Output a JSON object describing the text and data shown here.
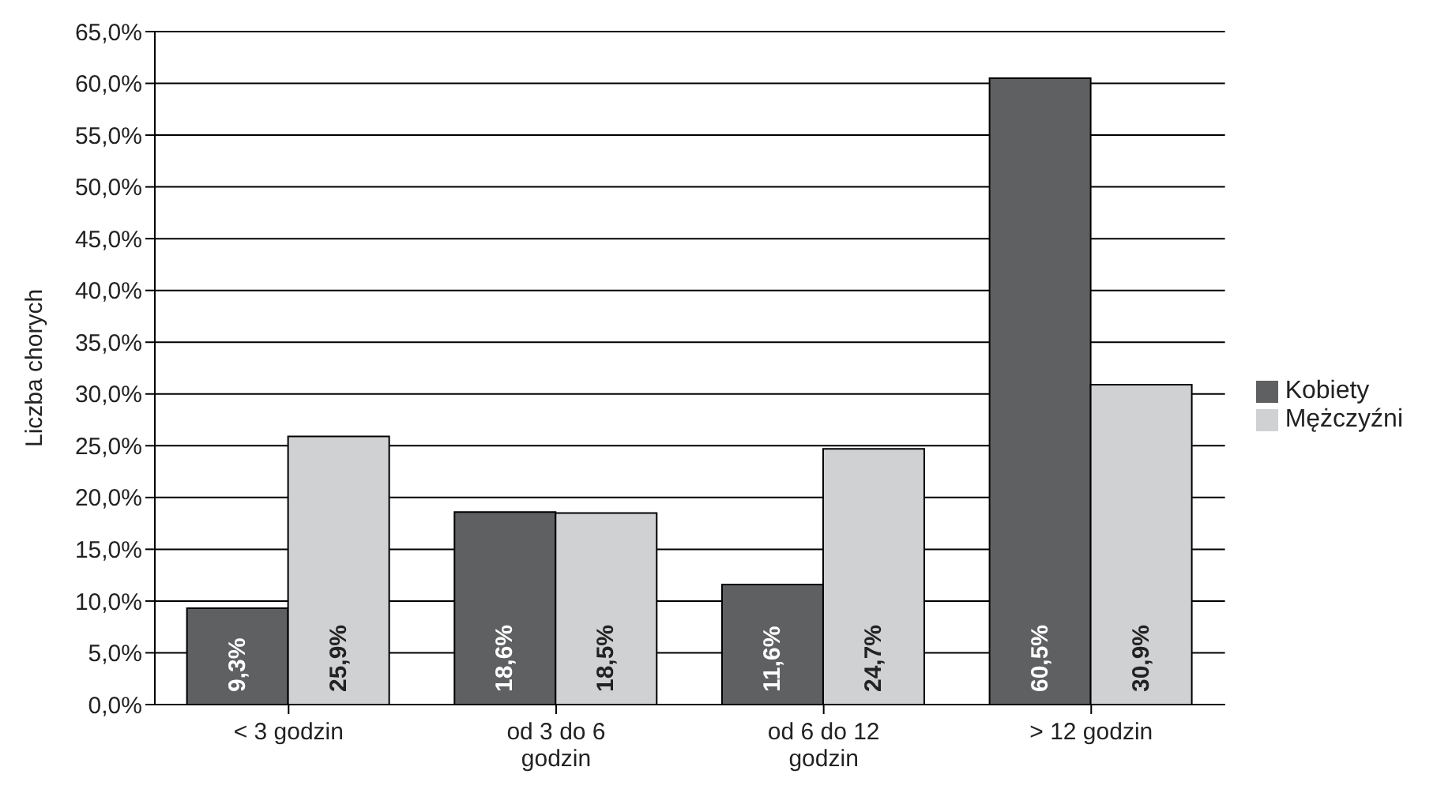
{
  "chart_data": {
    "type": "bar",
    "ylabel": "Liczba chorych",
    "categories": [
      "< 3 godzin",
      "od 3 do 6 godzin",
      "od 6 do 12 godzin",
      "> 12 godzin"
    ],
    "series": [
      {
        "name": "Kobiety",
        "color": "#5f6062",
        "values": [
          9.3,
          18.6,
          11.6,
          60.5
        ],
        "value_labels": [
          "9,3%",
          "18,6%",
          "11,6%",
          "60,5%"
        ]
      },
      {
        "name": "Mężczyźni",
        "color": "#d0d1d3",
        "values": [
          25.9,
          18.5,
          24.7,
          30.9
        ],
        "value_labels": [
          "25,9%",
          "18,5%",
          "24,7%",
          "30,9%"
        ]
      }
    ],
    "ylim": [
      0,
      65
    ],
    "yticks": [
      {
        "value": 0,
        "label": "0,0%"
      },
      {
        "value": 5,
        "label": "5,0%"
      },
      {
        "value": 10,
        "label": "10,0%"
      },
      {
        "value": 15,
        "label": "15,0%"
      },
      {
        "value": 20,
        "label": "20,0%"
      },
      {
        "value": 25,
        "label": "25,0%"
      },
      {
        "value": 30,
        "label": "30,0%"
      },
      {
        "value": 35,
        "label": "35,0%"
      },
      {
        "value": 40,
        "label": "40,0%"
      },
      {
        "value": 45,
        "label": "45,0%"
      },
      {
        "value": 50,
        "label": "50,0%"
      },
      {
        "value": 55,
        "label": "55,0%"
      },
      {
        "value": 60,
        "label": "60,0%"
      },
      {
        "value": 65,
        "label": "65,0%"
      }
    ],
    "grid": "y",
    "legend": "right"
  }
}
